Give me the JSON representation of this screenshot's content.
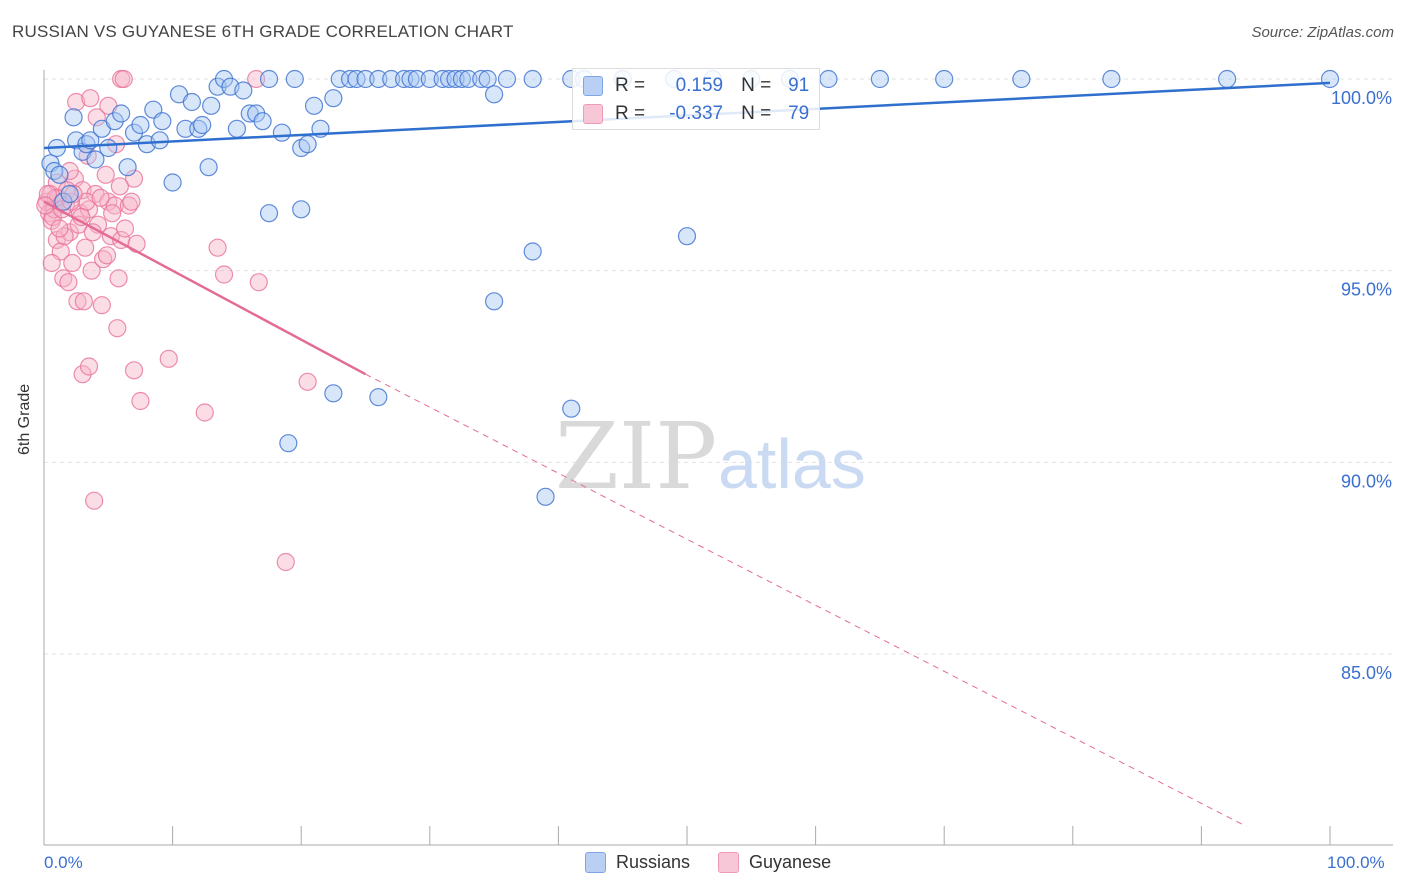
{
  "title": "RUSSIAN VS GUYANESE 6TH GRADE CORRELATION CHART",
  "source": "Source: ZipAtlas.com",
  "watermark": {
    "zip": "ZIP",
    "atlas": "atlas"
  },
  "colors": {
    "blue": "#3a6fd0",
    "blue_fill": "#a9c7f2",
    "blue_line": "#2f6fce",
    "pink": "#e9729a",
    "pink_fill": "#f6b3c8",
    "pink_line": "#e46b95",
    "grid": "#e2e2e2"
  },
  "legend": {
    "rows": [
      {
        "r_label": "R =",
        "r_value": "0.159",
        "n_label": "N =",
        "n_value": "91"
      },
      {
        "r_label": "R =",
        "r_value": "-0.337",
        "n_label": "N =",
        "n_value": "79"
      }
    ]
  },
  "bottom_legend": [
    "Russians",
    "Guyanese"
  ],
  "chart_data": {
    "type": "scatter",
    "title": "RUSSIAN VS GUYANESE 6TH GRADE CORRELATION CHART",
    "xlabel": "",
    "ylabel": "6th Grade",
    "xlim": [
      0,
      100
    ],
    "ylim": [
      80.5,
      100.5
    ],
    "x_tick_labels": [
      "0.0%",
      "100.0%"
    ],
    "y_ticks": [
      85,
      90,
      95,
      100
    ],
    "y_tick_labels": [
      "85.0%",
      "90.0%",
      "95.0%",
      "100.0%"
    ],
    "grid": true,
    "series": [
      {
        "name": "Russians",
        "r": 0.159,
        "n": 91,
        "trend": {
          "x": [
            0,
            100
          ],
          "y": [
            98.2,
            99.9
          ],
          "dashed_x_max": null
        },
        "points": [
          [
            0.5,
            97.8
          ],
          [
            0.8,
            97.6
          ],
          [
            1.0,
            98.2
          ],
          [
            1.2,
            97.5
          ],
          [
            1.5,
            96.8
          ],
          [
            2.0,
            97.0
          ],
          [
            2.5,
            98.4
          ],
          [
            3.0,
            98.1
          ],
          [
            3.3,
            98.3
          ],
          [
            3.6,
            98.4
          ],
          [
            4.0,
            97.9
          ],
          [
            4.5,
            98.7
          ],
          [
            5.0,
            98.2
          ],
          [
            5.5,
            98.9
          ],
          [
            6.0,
            99.1
          ],
          [
            7.0,
            98.6
          ],
          [
            7.5,
            98.8
          ],
          [
            8.0,
            98.3
          ],
          [
            8.5,
            99.2
          ],
          [
            9.2,
            98.9
          ],
          [
            10.0,
            97.3
          ],
          [
            10.5,
            99.6
          ],
          [
            11.0,
            98.7
          ],
          [
            11.5,
            99.4
          ],
          [
            12.0,
            98.7
          ],
          [
            12.3,
            98.8
          ],
          [
            13.0,
            99.3
          ],
          [
            13.5,
            99.8
          ],
          [
            14.0,
            100.0
          ],
          [
            14.5,
            99.8
          ],
          [
            15.0,
            98.7
          ],
          [
            15.5,
            99.7
          ],
          [
            16.0,
            99.1
          ],
          [
            16.5,
            99.1
          ],
          [
            17.0,
            98.9
          ],
          [
            17.5,
            100.0
          ],
          [
            18.5,
            98.6
          ],
          [
            19.5,
            100.0
          ],
          [
            20.0,
            98.2
          ],
          [
            20.5,
            98.3
          ],
          [
            21.0,
            99.3
          ],
          [
            21.5,
            98.7
          ],
          [
            22.5,
            99.5
          ],
          [
            23.0,
            100.0
          ],
          [
            23.8,
            100.0
          ],
          [
            24.3,
            100.0
          ],
          [
            25.0,
            100.0
          ],
          [
            26.0,
            100.0
          ],
          [
            27.0,
            100.0
          ],
          [
            28.0,
            100.0
          ],
          [
            28.5,
            100.0
          ],
          [
            29.0,
            100.0
          ],
          [
            30.0,
            100.0
          ],
          [
            31.0,
            100.0
          ],
          [
            31.5,
            100.0
          ],
          [
            32.0,
            100.0
          ],
          [
            32.5,
            100.0
          ],
          [
            33.0,
            100.0
          ],
          [
            34.0,
            100.0
          ],
          [
            34.5,
            100.0
          ],
          [
            35.0,
            99.6
          ],
          [
            36.0,
            100.0
          ],
          [
            38.0,
            100.0
          ],
          [
            41.0,
            100.0
          ],
          [
            42.0,
            100.0
          ],
          [
            45.0,
            100.0
          ],
          [
            49.0,
            100.0
          ],
          [
            52.0,
            100.0
          ],
          [
            55.0,
            100.0
          ],
          [
            58.0,
            100.0
          ],
          [
            61.0,
            100.0
          ],
          [
            65.0,
            100.0
          ],
          [
            70.0,
            100.0
          ],
          [
            76.0,
            100.0
          ],
          [
            83.0,
            100.0
          ],
          [
            92.0,
            100.0
          ],
          [
            100.0,
            100.0
          ],
          [
            17.5,
            96.5
          ],
          [
            20.0,
            96.6
          ],
          [
            35.0,
            94.2
          ],
          [
            38.0,
            95.5
          ],
          [
            50.0,
            95.9
          ],
          [
            22.5,
            91.8
          ],
          [
            26.0,
            91.7
          ],
          [
            41.0,
            91.4
          ],
          [
            19.0,
            90.5
          ],
          [
            39.0,
            89.1
          ],
          [
            2.3,
            99.0
          ],
          [
            6.5,
            97.7
          ],
          [
            9.0,
            98.4
          ],
          [
            12.8,
            97.7
          ]
        ]
      },
      {
        "name": "Guyanese",
        "r": -0.337,
        "n": 79,
        "trend": {
          "x": [
            0,
            25
          ],
          "y": [
            96.8,
            92.3
          ],
          "dashed_to": [
            93.5,
            80.5
          ]
        },
        "points": [
          [
            0.2,
            96.8
          ],
          [
            0.4,
            96.5
          ],
          [
            0.5,
            97.0
          ],
          [
            0.6,
            96.3
          ],
          [
            0.8,
            96.6
          ],
          [
            1.0,
            95.8
          ],
          [
            1.1,
            96.9
          ],
          [
            1.3,
            95.5
          ],
          [
            1.5,
            94.8
          ],
          [
            1.7,
            96.7
          ],
          [
            2.0,
            96.0
          ],
          [
            2.2,
            95.2
          ],
          [
            2.4,
            97.4
          ],
          [
            2.6,
            94.2
          ],
          [
            2.8,
            96.5
          ],
          [
            3.0,
            97.1
          ],
          [
            3.2,
            95.6
          ],
          [
            3.4,
            98.0
          ],
          [
            3.5,
            96.6
          ],
          [
            3.7,
            95.0
          ],
          [
            4.0,
            97.0
          ],
          [
            4.2,
            96.2
          ],
          [
            4.5,
            94.1
          ],
          [
            4.8,
            97.5
          ],
          [
            5.0,
            96.8
          ],
          [
            5.2,
            95.9
          ],
          [
            5.5,
            96.7
          ],
          [
            5.8,
            94.8
          ],
          [
            6.0,
            95.8
          ],
          [
            6.3,
            96.1
          ],
          [
            2.5,
            99.4
          ],
          [
            3.6,
            99.5
          ],
          [
            5.0,
            99.3
          ],
          [
            6.0,
            100.0
          ],
          [
            6.2,
            100.0
          ],
          [
            4.1,
            99.0
          ],
          [
            5.6,
            98.3
          ],
          [
            7.0,
            97.4
          ],
          [
            1.0,
            97.3
          ],
          [
            2.0,
            97.6
          ],
          [
            3.0,
            92.3
          ],
          [
            3.1,
            94.2
          ],
          [
            3.5,
            92.5
          ],
          [
            3.9,
            89.0
          ],
          [
            5.7,
            93.5
          ],
          [
            7.0,
            92.4
          ],
          [
            7.5,
            91.6
          ],
          [
            9.7,
            92.7
          ],
          [
            12.5,
            91.3
          ],
          [
            13.5,
            95.6
          ],
          [
            14.0,
            94.9
          ],
          [
            16.7,
            94.7
          ],
          [
            20.5,
            92.1
          ],
          [
            18.8,
            87.4
          ],
          [
            16.5,
            100.0
          ],
          [
            7.2,
            95.7
          ],
          [
            0.9,
            96.9
          ],
          [
            1.8,
            97.1
          ],
          [
            2.7,
            96.2
          ],
          [
            3.3,
            96.8
          ],
          [
            4.4,
            96.9
          ],
          [
            6.6,
            96.7
          ],
          [
            0.3,
            97.0
          ],
          [
            0.7,
            96.4
          ],
          [
            1.4,
            96.6
          ],
          [
            2.1,
            96.8
          ],
          [
            4.6,
            95.3
          ],
          [
            5.3,
            96.5
          ],
          [
            1.6,
            95.9
          ],
          [
            2.9,
            96.4
          ],
          [
            0.6,
            95.2
          ],
          [
            1.9,
            94.7
          ],
          [
            3.8,
            96.0
          ],
          [
            5.9,
            97.2
          ],
          [
            6.8,
            96.8
          ],
          [
            0.1,
            96.7
          ],
          [
            1.2,
            96.1
          ],
          [
            2.3,
            97.0
          ],
          [
            4.9,
            95.4
          ]
        ]
      }
    ]
  }
}
